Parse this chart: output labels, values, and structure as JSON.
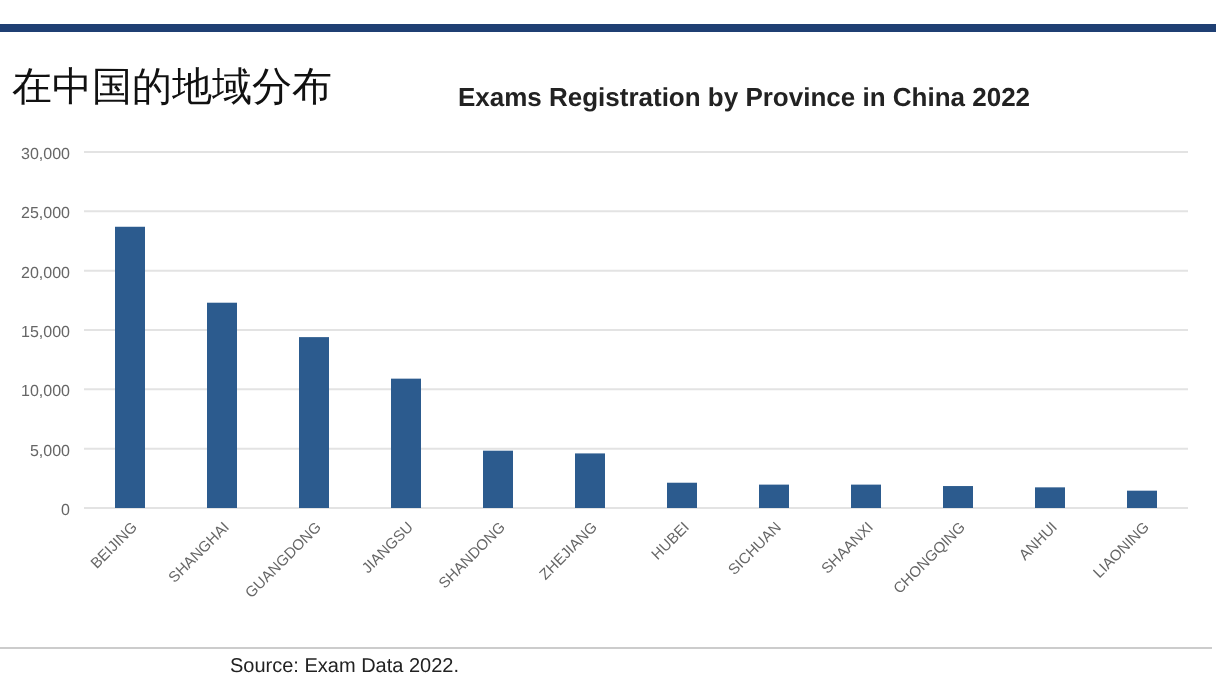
{
  "chart_data": {
    "type": "bar",
    "title": "Exams Registration by Province in China 2022",
    "subtitle": "在中国的地域分布",
    "categories": [
      "BEIJING",
      "SHANGHAI",
      "GUANGDONG",
      "JIANGSU",
      "SHANDONG",
      "ZHEJIANG",
      "HUBEI",
      "SICHUAN",
      "SHAANXI",
      "CHONGQING",
      "ANHUI",
      "LIAONING"
    ],
    "values": [
      23700,
      17300,
      14400,
      10900,
      4830,
      4600,
      2130,
      1970,
      1970,
      1850,
      1740,
      1460
    ],
    "color": "#2c5b8e",
    "ylim": [
      0,
      30000
    ],
    "yticks": [
      {
        "value": 0,
        "label": "0"
      },
      {
        "value": 5000,
        "label": "5,000"
      },
      {
        "value": 10000,
        "label": "10,000"
      },
      {
        "value": 15000,
        "label": "15,000"
      },
      {
        "value": 20000,
        "label": "20,000"
      },
      {
        "value": 25000,
        "label": "25,000"
      },
      {
        "value": 30000,
        "label": "30,000"
      }
    ],
    "grid": "y",
    "annotations": [
      "Source: Exam Data 2022."
    ]
  }
}
